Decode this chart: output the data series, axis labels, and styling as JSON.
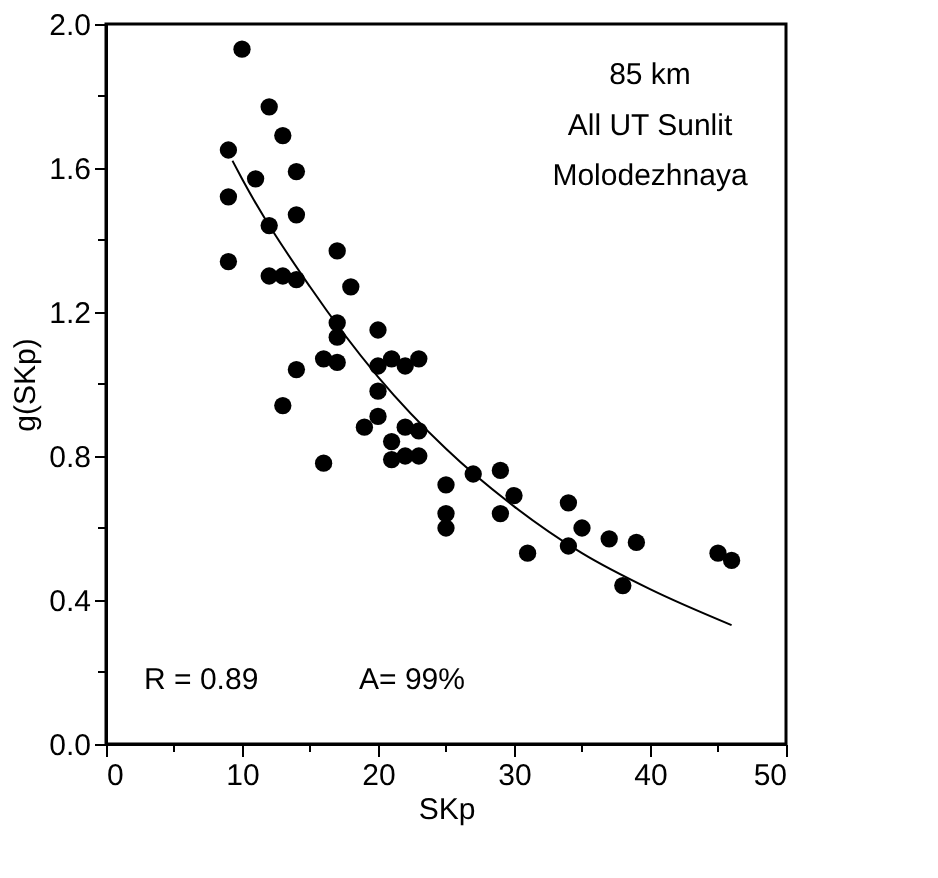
{
  "chart_data": {
    "type": "scatter",
    "xlabel": "SKp",
    "ylabel": "g(SKp)",
    "xlim": [
      0,
      50
    ],
    "ylim": [
      0,
      2.0
    ],
    "xticks": [
      0,
      {
        "value": 5,
        "label": null
      },
      10,
      {
        "value": 15,
        "label": null
      },
      20,
      {
        "value": 25,
        "label": null
      },
      30,
      {
        "value": 35,
        "label": null
      },
      40,
      {
        "value": 45,
        "label": null
      },
      50
    ],
    "yticks": [
      {
        "value": 0,
        "label": "0.0"
      },
      {
        "value": 0.2,
        "label": null
      },
      {
        "value": 0.4,
        "label": "0.4"
      },
      {
        "value": 0.6,
        "label": null
      },
      {
        "value": 0.8,
        "label": "0.8"
      },
      {
        "value": 1.0,
        "label": null
      },
      {
        "value": 1.2,
        "label": "1.2"
      },
      {
        "value": 1.4,
        "label": null
      },
      {
        "value": 1.6,
        "label": "1.6"
      },
      {
        "value": 1.8,
        "label": null
      },
      {
        "value": 2.0,
        "label": "2.0"
      }
    ],
    "grid": false,
    "marker": "circle",
    "series": [
      {
        "color": "#000000",
        "x": [
          10,
          9,
          9,
          9,
          11,
          12,
          13,
          14,
          14,
          12,
          12,
          13,
          14,
          13,
          14,
          16,
          17,
          18,
          17,
          17,
          16,
          17,
          20,
          20,
          21,
          22,
          23,
          19,
          20,
          20,
          21,
          21,
          22,
          22,
          23,
          23,
          25,
          25,
          25,
          27,
          29,
          29,
          30,
          31,
          34,
          34,
          35,
          37,
          38,
          39,
          45,
          46
        ],
        "values": [
          1.93,
          1.65,
          1.52,
          1.34,
          1.57,
          1.77,
          1.69,
          1.59,
          1.47,
          1.44,
          1.3,
          1.3,
          1.29,
          0.94,
          1.04,
          0.78,
          1.37,
          1.27,
          1.17,
          1.13,
          1.07,
          1.06,
          1.15,
          1.05,
          1.07,
          1.05,
          1.07,
          0.88,
          0.91,
          0.98,
          0.84,
          0.79,
          0.88,
          0.8,
          0.87,
          0.8,
          0.72,
          0.64,
          0.6,
          0.75,
          0.76,
          0.64,
          0.69,
          0.53,
          0.67,
          0.55,
          0.6,
          0.57,
          0.44,
          0.56,
          0.53,
          0.51
        ]
      },
      {
        "type": "line",
        "color": "#000000",
        "marker": "none",
        "x": [
          9.3,
          10,
          15,
          20,
          25,
          30,
          35,
          40,
          46
        ],
        "values": [
          1.62,
          1.57,
          1.27,
          1.02,
          0.82,
          0.66,
          0.53,
          0.43,
          0.33
        ]
      }
    ],
    "annotations": [
      "85 km",
      "All UT Sunlit",
      "Molodezhnaya",
      "R = 0.89",
      "A= 99%"
    ]
  }
}
